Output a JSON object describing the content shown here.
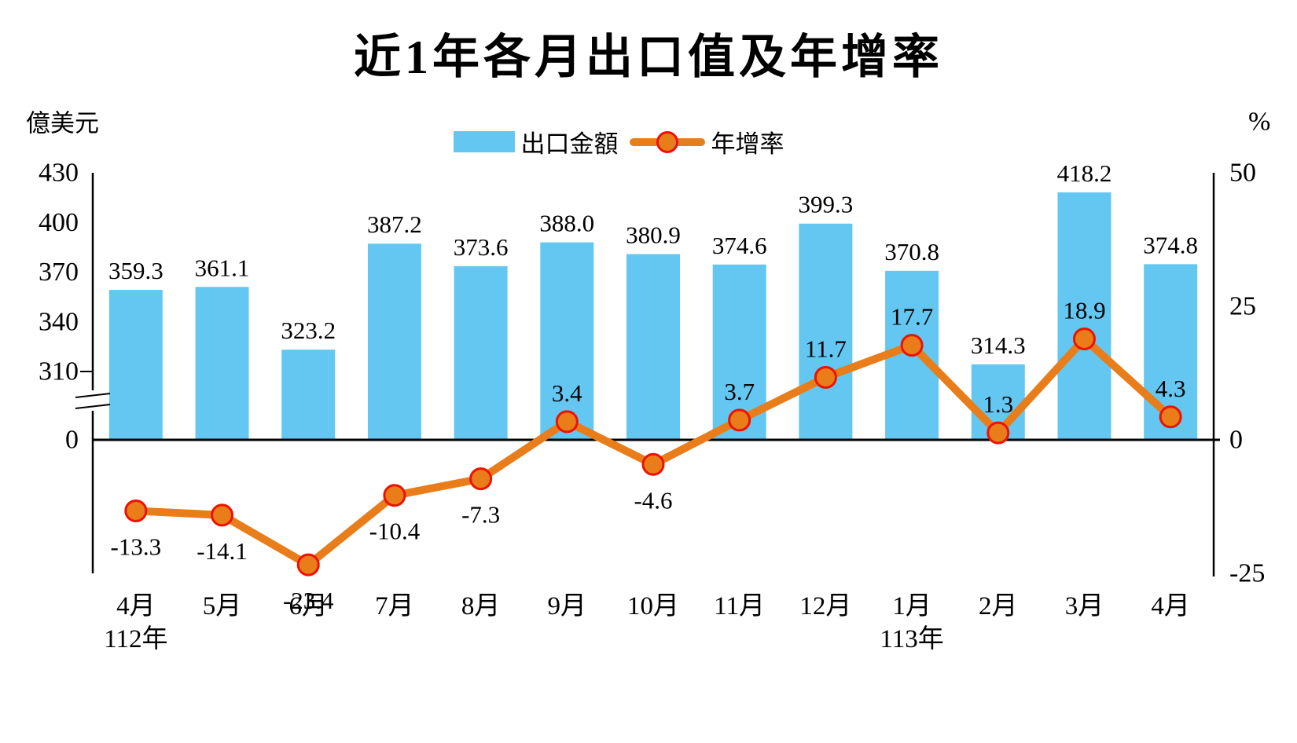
{
  "title": "近1年各月出口值及年增率",
  "legend": {
    "bar_label": "出口金額",
    "line_label": "年增率"
  },
  "axes": {
    "left_unit": "億美元",
    "right_unit": "%",
    "left_ticks": [
      430,
      400,
      370,
      340,
      310,
      0
    ],
    "right_ticks": [
      50,
      25,
      0,
      -25
    ],
    "left_axis_break": true
  },
  "chart_data": {
    "type": "bar",
    "subtype": "bar-line-combo",
    "title": "近1年各月出口值及年增率",
    "categories": [
      "4月",
      "5月",
      "6月",
      "7月",
      "8月",
      "9月",
      "10月",
      "11月",
      "12月",
      "1月",
      "2月",
      "3月",
      "4月"
    ],
    "year_markers": [
      {
        "index": 0,
        "label": "112年"
      },
      {
        "index": 9,
        "label": "113年"
      }
    ],
    "series": [
      {
        "name": "出口金額",
        "type": "bar",
        "axis": "left",
        "unit": "億美元",
        "values": [
          359.3,
          361.1,
          323.2,
          387.2,
          373.6,
          388.0,
          380.9,
          374.6,
          399.3,
          370.8,
          314.3,
          418.2,
          374.8
        ]
      },
      {
        "name": "年增率",
        "type": "line",
        "axis": "right",
        "unit": "%",
        "values": [
          -13.3,
          -14.1,
          -23.4,
          -10.4,
          -7.3,
          3.4,
          -4.6,
          3.7,
          11.7,
          17.7,
          1.3,
          18.9,
          4.3
        ]
      }
    ],
    "left_axis_visible_range": [
      310,
      430
    ],
    "right_axis_range": [
      -25,
      50
    ],
    "grid": false,
    "legend_position": "top-center"
  },
  "colors": {
    "bar": "#63C7F2",
    "line": "#E87D1A",
    "marker_fill": "#E87D1A",
    "marker_stroke": "#EE1100",
    "axis": "#000000",
    "text": "#000000"
  }
}
